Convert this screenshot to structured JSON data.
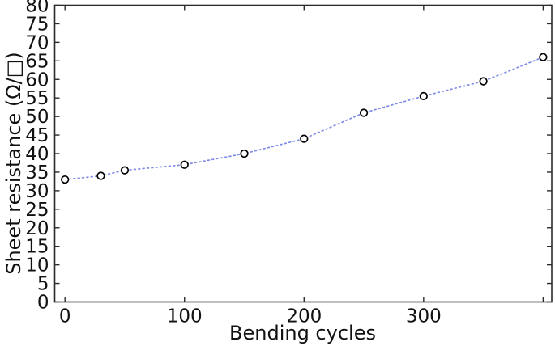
{
  "figure": {
    "background": "#ffffff",
    "frame_color": "#2b2b2b",
    "text_color": "#111111",
    "line_color": "#7e8ce8",
    "marker_stroke": "#000000",
    "marker_fill": "#ffffff"
  },
  "chart_data": {
    "type": "scatter",
    "title": "",
    "xlabel": "Bending cycles",
    "ylabel": "Sheet resistance (Ω/□)",
    "x": [
      0,
      30,
      50,
      100,
      150,
      200,
      250,
      300,
      350,
      400
    ],
    "y": [
      33,
      34,
      35.5,
      37,
      40,
      44,
      51,
      55.5,
      59.5,
      66
    ],
    "xlim": [
      -8.6,
      407.2
    ],
    "ylim": [
      0,
      80
    ],
    "x_ticks": [
      0,
      100,
      200,
      300,
      400
    ],
    "x_tick_labels": [
      "0",
      "100",
      "200",
      "300",
      ""
    ],
    "y_ticks": [
      0,
      5,
      10,
      15,
      20,
      25,
      30,
      35,
      40,
      45,
      50,
      55,
      60,
      65,
      70,
      75,
      80
    ],
    "y_tick_labels": [
      "0",
      "5",
      "10",
      "15",
      "20",
      "25",
      "30",
      "35",
      "40",
      "45",
      "50",
      "55",
      "60",
      "65",
      "70",
      "75",
      "80"
    ],
    "grid": false,
    "legend": null,
    "line_style": "dotted",
    "marker": "open-circle",
    "tick_direction": "in",
    "mirrored_ticks": true
  }
}
